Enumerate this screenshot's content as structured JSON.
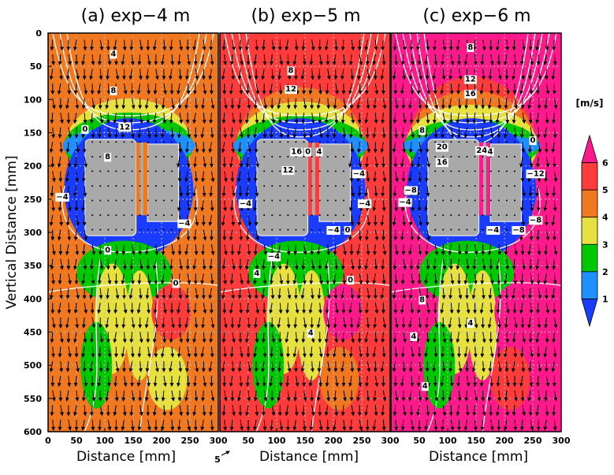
{
  "chart_data": {
    "type": "heatmap",
    "panels": [
      {
        "title": "(a)  exp−4 m",
        "background_speed": 4,
        "contour_labels": [
          "4",
          "8",
          "12",
          "0",
          "8",
          "−4",
          "−4",
          "0",
          "0"
        ]
      },
      {
        "title": "(b)  exp−5 m",
        "background_speed": 5,
        "contour_labels": [
          "8",
          "12",
          "12",
          "16",
          "0",
          "4",
          "−4",
          "−4",
          "−4",
          "0",
          "4",
          "−4",
          "−4",
          "4",
          "0"
        ]
      },
      {
        "title": "(c)  exp−6 m",
        "background_speed": 6,
        "contour_labels": [
          "8",
          "12",
          "16",
          "8",
          "20",
          "16",
          "24",
          "4",
          "−8",
          "−4",
          "−4",
          "−8",
          "−12",
          "0",
          "−8",
          "8",
          "4",
          "4",
          "4"
        ]
      }
    ],
    "x_axis": {
      "label": "Distance  [mm]",
      "range": [
        0,
        300
      ],
      "ticks": [
        "0",
        "50",
        "100",
        "150",
        "200",
        "250",
        "300"
      ]
    },
    "y_axis": {
      "label": "Vertical Distance  [mm]",
      "range": [
        600,
        0
      ],
      "ticks": [
        "0",
        "50",
        "100",
        "150",
        "200",
        "250",
        "300",
        "350",
        "400",
        "450",
        "500",
        "550",
        "600"
      ]
    },
    "colorbar": {
      "unit": "[m/s]",
      "levels": [
        "1",
        "2",
        "3",
        "4",
        "5",
        "6"
      ],
      "colors": [
        "#1a3cff",
        "#1e90ff",
        "#00c800",
        "#e6e040",
        "#f07820",
        "#ff3c3c",
        "#ff1a8c"
      ]
    },
    "vector_reference": "5",
    "building": {
      "x_range": [
        65,
        230
      ],
      "y_range": [
        160,
        305
      ],
      "gap_x": [
        155,
        175
      ]
    },
    "grid": true
  }
}
